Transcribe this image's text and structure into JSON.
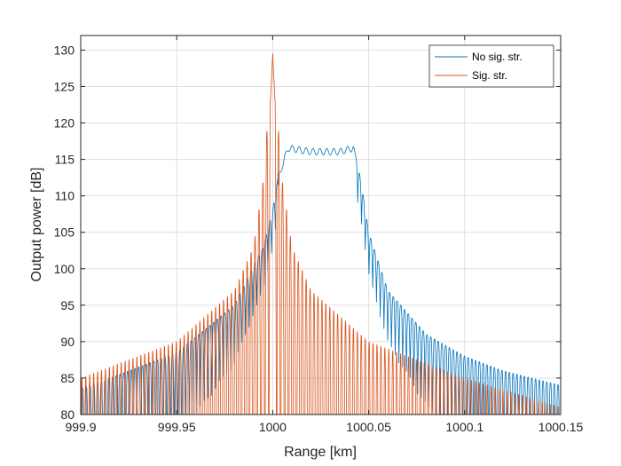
{
  "chart_data": {
    "type": "line",
    "title": "",
    "xlabel": "Range [km]",
    "ylabel": "Output power [dB]",
    "xlim": [
      999.9,
      1000.15
    ],
    "ylim": [
      80,
      132
    ],
    "xticks": [
      999.9,
      999.95,
      1000,
      1000.05,
      1000.1,
      1000.15
    ],
    "xtick_labels": [
      "999.9",
      "999.95",
      "1000",
      "1000.05",
      "1000.1",
      "1000.15"
    ],
    "yticks": [
      80,
      85,
      90,
      95,
      100,
      105,
      110,
      115,
      120,
      125,
      130
    ],
    "ytick_labels": [
      "80",
      "85",
      "90",
      "95",
      "100",
      "105",
      "110",
      "115",
      "120",
      "125",
      "130"
    ],
    "grid": true,
    "legend_position": "top-right",
    "series": [
      {
        "name": "No sig. str.",
        "color": "#0072BD",
        "description": "Flat-topped response (~116-117 dB) between about 1000.00 and 1000.04 km, decaying sidelobes on both sides with a ripple floor",
        "envelope_x": [
          999.9,
          999.95,
          999.98,
          999.995,
          1000.0,
          1000.003,
          1000.008,
          1000.02,
          1000.035,
          1000.042,
          1000.046,
          1000.05,
          1000.06,
          1000.08,
          1000.1,
          1000.12,
          1000.15
        ],
        "envelope_y": [
          83.5,
          88.5,
          95,
          103,
          108,
          113,
          117,
          116.5,
          116.5,
          117,
          112,
          105,
          97,
          91,
          88,
          86,
          84
        ]
      },
      {
        "name": "Sig. str.",
        "color": "#D95319",
        "description": "Sharp compressed peak of ~129.5 dB at 1000 km with symmetric sinc-like sidelobes decaying to ~83-85 dB",
        "envelope_x": [
          999.9,
          999.95,
          999.98,
          999.99,
          999.995,
          1000.0,
          1000.005,
          1000.01,
          1000.02,
          1000.05,
          1000.1,
          1000.15
        ],
        "envelope_y": [
          85,
          90,
          97,
          103,
          112,
          129.5,
          112,
          103,
          97,
          90,
          85,
          81
        ]
      }
    ]
  }
}
